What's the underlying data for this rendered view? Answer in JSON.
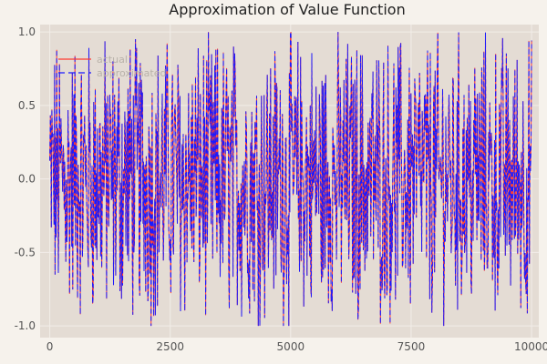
{
  "chart_data": {
    "type": "line",
    "title": "Approximation of Value Function",
    "xlabel": "",
    "ylabel": "",
    "xlim": [
      -200,
      10150
    ],
    "ylim": [
      -1.08,
      1.05
    ],
    "x_ticks": [
      0,
      2500,
      5000,
      7500,
      10000
    ],
    "x_tick_labels": [
      "0",
      "2500",
      "5000",
      "7500",
      "10000"
    ],
    "y_ticks": [
      1.0,
      0.5,
      0.0,
      -0.5,
      -1.0
    ],
    "y_tick_labels": [
      "1.0",
      "0.5",
      "0.0",
      "-0.5",
      "-1.0"
    ],
    "grid": true,
    "legend_position": "top-left",
    "x_range": [
      0,
      10000
    ],
    "series": [
      {
        "name": "actual",
        "color": "#ff3b30",
        "style": "solid"
      },
      {
        "name": "approximated",
        "color": "#1a1aff",
        "style": "dashed"
      }
    ],
    "colors": {
      "plot_background": "#e4dcd4",
      "page_background": "#f6f2ec",
      "grid": "#f2ede8"
    }
  }
}
